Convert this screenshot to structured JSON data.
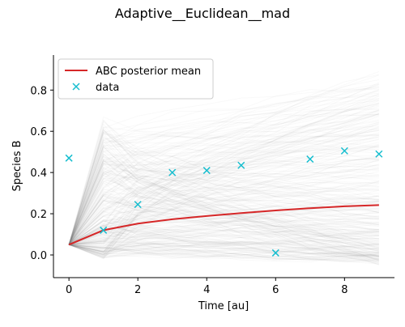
{
  "chart_data": {
    "type": "line",
    "title": "Adaptive__Euclidean__mad",
    "xlabel": "Time [au]",
    "ylabel": "Species B",
    "xlim": [
      -0.45,
      9.45
    ],
    "ylim": [
      -0.11,
      0.97
    ],
    "xticks": [
      0,
      2,
      4,
      6,
      8
    ],
    "yticks": [
      0.0,
      0.2,
      0.4,
      0.6,
      0.8
    ],
    "xtick_labels": [
      "0",
      "2",
      "4",
      "6",
      "8"
    ],
    "ytick_labels": [
      "0.0",
      "0.2",
      "0.4",
      "0.6",
      "0.8"
    ],
    "legend_position": "upper-left",
    "grid": false,
    "series": [
      {
        "name": "ABC posterior mean",
        "kind": "line",
        "color": "#d62728",
        "x": [
          0,
          1,
          2,
          3,
          4,
          5,
          6,
          7,
          8,
          9
        ],
        "y": [
          0.05,
          0.12,
          0.152,
          0.173,
          0.189,
          0.203,
          0.216,
          0.227,
          0.236,
          0.242
        ]
      },
      {
        "name": "data",
        "kind": "scatter",
        "marker": "x",
        "color": "#17becf",
        "x": [
          0,
          1,
          2,
          3,
          4,
          5,
          6,
          7,
          8,
          9
        ],
        "y": [
          0.47,
          0.12,
          0.245,
          0.4,
          0.41,
          0.435,
          0.01,
          0.465,
          0.505,
          0.49
        ]
      }
    ],
    "posterior_trajectories": {
      "color": "#808080",
      "description_count": 300,
      "start_y": 0.05,
      "band_at_x1": [
        0.0,
        0.65
      ],
      "band_at_x9": [
        -0.03,
        0.88
      ]
    }
  }
}
